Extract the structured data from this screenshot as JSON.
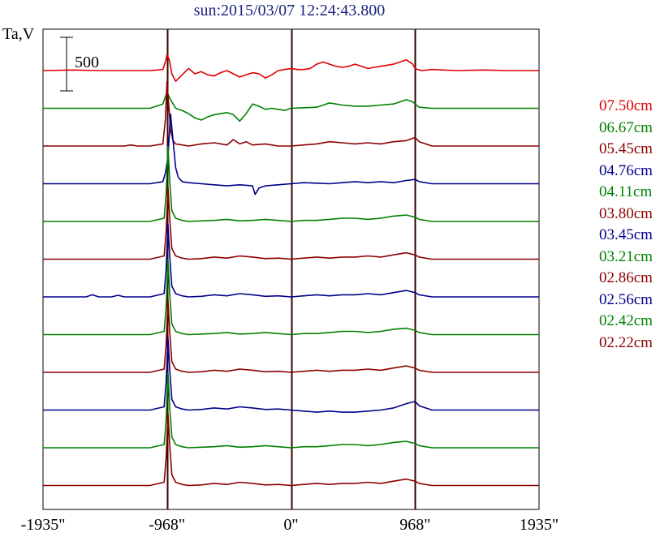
{
  "title": "sun:2015/03/07 12:24:43.800",
  "ylabel": "Ta,V",
  "scale_bar_label": "500",
  "chart_data": {
    "type": "line",
    "title": "sun:2015/03/07 12:24:43.800",
    "ylabel": "Ta,V",
    "xlim": [
      -1935,
      1935
    ],
    "x_ticks": [
      "-1935\"",
      "-968\"",
      "0\"",
      "968\"",
      "1935\""
    ],
    "x_tick_values": [
      -1935,
      -968,
      0,
      968,
      1935
    ],
    "vertical_lines": [
      -968,
      0,
      968
    ],
    "scale_bar_value": 500,
    "series": [
      {
        "name": "07.50cm",
        "color": "#e00000",
        "x": [
          -1935,
          -1700,
          -1500,
          -1300,
          -1100,
          -1000,
          -980,
          -968,
          -950,
          -930,
          -900,
          -850,
          -800,
          -750,
          -700,
          -650,
          -600,
          -550,
          -500,
          -450,
          -400,
          -350,
          -300,
          -250,
          -200,
          -150,
          -100,
          -50,
          0,
          50,
          100,
          150,
          200,
          250,
          300,
          350,
          400,
          450,
          500,
          550,
          600,
          650,
          700,
          750,
          800,
          850,
          900,
          950,
          968,
          990,
          1020,
          1100,
          1300,
          1500,
          1700,
          1935
        ],
        "y": [
          0,
          5,
          0,
          0,
          0,
          10,
          80,
          150,
          100,
          -30,
          -100,
          -40,
          20,
          -30,
          -10,
          -40,
          -50,
          -20,
          0,
          -30,
          -60,
          -40,
          -20,
          -30,
          -70,
          -40,
          0,
          10,
          20,
          10,
          10,
          20,
          60,
          80,
          60,
          40,
          30,
          40,
          60,
          40,
          20,
          30,
          40,
          50,
          60,
          80,
          100,
          60,
          20,
          10,
          0,
          10,
          0,
          5,
          0,
          0
        ]
      },
      {
        "name": "06.67cm",
        "color": "#008000",
        "x": [
          -1935,
          -1500,
          -1100,
          -1000,
          -968,
          -940,
          -900,
          -850,
          -800,
          -750,
          -700,
          -650,
          -600,
          -550,
          -500,
          -450,
          -400,
          -350,
          -300,
          -250,
          -200,
          -150,
          -100,
          -50,
          0,
          100,
          200,
          300,
          400,
          500,
          600,
          700,
          800,
          900,
          950,
          968,
          1000,
          1100,
          1500,
          1935
        ],
        "y": [
          0,
          0,
          0,
          40,
          150,
          80,
          0,
          -20,
          -50,
          -90,
          -110,
          -80,
          -60,
          -50,
          -40,
          -60,
          -120,
          -50,
          40,
          20,
          -10,
          0,
          -10,
          -20,
          0,
          5,
          10,
          50,
          30,
          20,
          20,
          30,
          40,
          80,
          60,
          40,
          10,
          0,
          0,
          0
        ]
      },
      {
        "name": "05.45cm",
        "color": "#8b0000",
        "x": [
          -1935,
          -1500,
          -1300,
          -1250,
          -1200,
          -1100,
          -1000,
          -980,
          -968,
          -955,
          -940,
          -920,
          -900,
          -850,
          -800,
          -700,
          -600,
          -500,
          -450,
          -400,
          -350,
          -300,
          -200,
          -100,
          0,
          100,
          200,
          300,
          400,
          500,
          600,
          700,
          800,
          900,
          968,
          1000,
          1050,
          1100,
          1500,
          1935
        ],
        "y": [
          0,
          0,
          0,
          10,
          0,
          0,
          20,
          250,
          600,
          400,
          150,
          50,
          20,
          10,
          0,
          20,
          30,
          10,
          60,
          20,
          40,
          10,
          20,
          0,
          0,
          10,
          20,
          40,
          30,
          20,
          30,
          20,
          40,
          50,
          80,
          40,
          20,
          0,
          0,
          0
        ]
      },
      {
        "name": "04.76cm",
        "color": "#00008b",
        "x": [
          -1935,
          -1500,
          -1100,
          -1000,
          -980,
          -960,
          -940,
          -920,
          -900,
          -880,
          -850,
          -800,
          -700,
          -600,
          -500,
          -400,
          -300,
          -280,
          -250,
          -200,
          -100,
          0,
          100,
          200,
          300,
          400,
          500,
          600,
          700,
          800,
          900,
          968,
          1000,
          1100,
          1500,
          1935
        ],
        "y": [
          0,
          0,
          0,
          20,
          100,
          250,
          650,
          400,
          150,
          60,
          20,
          10,
          0,
          -10,
          -20,
          -10,
          -20,
          -100,
          -40,
          -20,
          -10,
          0,
          10,
          5,
          0,
          10,
          20,
          10,
          20,
          10,
          30,
          40,
          20,
          0,
          0,
          0
        ]
      },
      {
        "name": "04.11cm",
        "color": "#008000",
        "x": [
          -1935,
          -1500,
          -1100,
          -990,
          -975,
          -960,
          -945,
          -930,
          -900,
          -850,
          -800,
          -700,
          -600,
          -500,
          -400,
          -300,
          -200,
          -100,
          0,
          100,
          200,
          300,
          400,
          500,
          600,
          700,
          800,
          900,
          968,
          1000,
          1100,
          1500,
          1935
        ],
        "y": [
          0,
          0,
          0,
          30,
          250,
          700,
          350,
          100,
          30,
          10,
          0,
          5,
          10,
          20,
          5,
          10,
          20,
          10,
          0,
          10,
          10,
          20,
          30,
          30,
          20,
          30,
          50,
          60,
          40,
          20,
          0,
          0,
          0
        ]
      },
      {
        "name": "03.80cm",
        "color": "#8b0000",
        "x": [
          -1935,
          -1500,
          -1100,
          -990,
          -975,
          -960,
          -945,
          -930,
          -900,
          -850,
          -800,
          -700,
          -600,
          -500,
          -400,
          -300,
          -200,
          -100,
          0,
          100,
          200,
          300,
          400,
          500,
          600,
          700,
          800,
          900,
          968,
          1000,
          1100,
          1500,
          1935
        ],
        "y": [
          0,
          0,
          0,
          30,
          250,
          680,
          350,
          100,
          30,
          10,
          0,
          5,
          20,
          10,
          30,
          20,
          5,
          10,
          0,
          10,
          20,
          10,
          20,
          20,
          30,
          20,
          40,
          60,
          40,
          20,
          0,
          0,
          0
        ]
      },
      {
        "name": "03.45cm",
        "color": "#00008b",
        "x": [
          -1935,
          -1600,
          -1550,
          -1500,
          -1400,
          -1350,
          -1300,
          -1100,
          -990,
          -975,
          -960,
          -945,
          -930,
          -900,
          -850,
          -800,
          -700,
          -600,
          -500,
          -400,
          -300,
          -200,
          -100,
          0,
          100,
          200,
          300,
          400,
          500,
          600,
          700,
          800,
          900,
          968,
          1000,
          1100,
          1500,
          1935
        ],
        "y": [
          0,
          0,
          20,
          0,
          0,
          15,
          0,
          0,
          30,
          250,
          680,
          350,
          100,
          30,
          10,
          0,
          5,
          20,
          10,
          30,
          20,
          5,
          10,
          0,
          10,
          20,
          10,
          20,
          20,
          30,
          20,
          40,
          60,
          40,
          20,
          0,
          0,
          0
        ]
      },
      {
        "name": "03.21cm",
        "color": "#008000",
        "x": [
          -1935,
          -1500,
          -1100,
          -990,
          -975,
          -960,
          -945,
          -930,
          -900,
          -850,
          -800,
          -700,
          -600,
          -500,
          -400,
          -300,
          -200,
          -100,
          0,
          100,
          200,
          300,
          400,
          500,
          600,
          700,
          800,
          900,
          968,
          1000,
          1100,
          1500,
          1935
        ],
        "y": [
          0,
          0,
          0,
          30,
          250,
          700,
          350,
          100,
          30,
          10,
          0,
          5,
          10,
          20,
          5,
          10,
          20,
          10,
          0,
          10,
          10,
          20,
          30,
          30,
          20,
          30,
          50,
          60,
          40,
          20,
          0,
          0,
          0
        ]
      },
      {
        "name": "02.86cm",
        "color": "#8b0000",
        "x": [
          -1935,
          -1500,
          -1100,
          -990,
          -975,
          -960,
          -945,
          -930,
          -900,
          -850,
          -800,
          -700,
          -600,
          -500,
          -400,
          -300,
          -200,
          -100,
          0,
          100,
          200,
          300,
          400,
          500,
          600,
          700,
          800,
          900,
          968,
          1000,
          1100,
          1500,
          1935
        ],
        "y": [
          0,
          0,
          0,
          30,
          250,
          680,
          350,
          100,
          30,
          10,
          0,
          5,
          20,
          10,
          30,
          20,
          5,
          10,
          0,
          10,
          20,
          10,
          20,
          20,
          30,
          20,
          40,
          60,
          40,
          20,
          0,
          0,
          0
        ]
      },
      {
        "name": "02.56cm",
        "color": "#00008b",
        "x": [
          -1935,
          -1500,
          -1100,
          -990,
          -975,
          -960,
          -945,
          -930,
          -900,
          -850,
          -800,
          -700,
          -600,
          -500,
          -400,
          -300,
          -200,
          -100,
          0,
          100,
          200,
          300,
          400,
          500,
          600,
          700,
          800,
          900,
          968,
          1000,
          1100,
          1500,
          1935
        ],
        "y": [
          0,
          0,
          0,
          30,
          250,
          680,
          350,
          100,
          30,
          10,
          0,
          5,
          20,
          10,
          30,
          20,
          5,
          10,
          0,
          -10,
          -20,
          -10,
          -20,
          -20,
          -10,
          0,
          20,
          60,
          80,
          40,
          0,
          0,
          0
        ]
      },
      {
        "name": "02.42cm",
        "color": "#008000",
        "x": [
          -1935,
          -1500,
          -1100,
          -990,
          -975,
          -960,
          -945,
          -930,
          -900,
          -850,
          -800,
          -700,
          -600,
          -500,
          -400,
          -300,
          -200,
          -100,
          0,
          100,
          200,
          300,
          400,
          500,
          600,
          700,
          800,
          900,
          968,
          1000,
          1100,
          1500,
          1935
        ],
        "y": [
          0,
          0,
          0,
          30,
          250,
          700,
          350,
          100,
          30,
          10,
          0,
          5,
          10,
          20,
          5,
          10,
          20,
          10,
          0,
          10,
          10,
          20,
          30,
          30,
          20,
          30,
          50,
          60,
          40,
          20,
          0,
          0,
          0
        ]
      },
      {
        "name": "02.22cm",
        "color": "#8b0000",
        "x": [
          -1935,
          -1500,
          -1100,
          -990,
          -975,
          -960,
          -945,
          -930,
          -900,
          -850,
          -800,
          -700,
          -600,
          -500,
          -400,
          -300,
          -200,
          -100,
          0,
          100,
          200,
          300,
          400,
          500,
          600,
          700,
          800,
          900,
          968,
          1000,
          1100,
          1500,
          1935
        ],
        "y": [
          0,
          0,
          0,
          30,
          250,
          680,
          350,
          100,
          30,
          10,
          0,
          5,
          20,
          10,
          30,
          20,
          5,
          10,
          0,
          10,
          20,
          10,
          20,
          20,
          30,
          20,
          40,
          60,
          40,
          20,
          0,
          0,
          0
        ]
      }
    ]
  }
}
